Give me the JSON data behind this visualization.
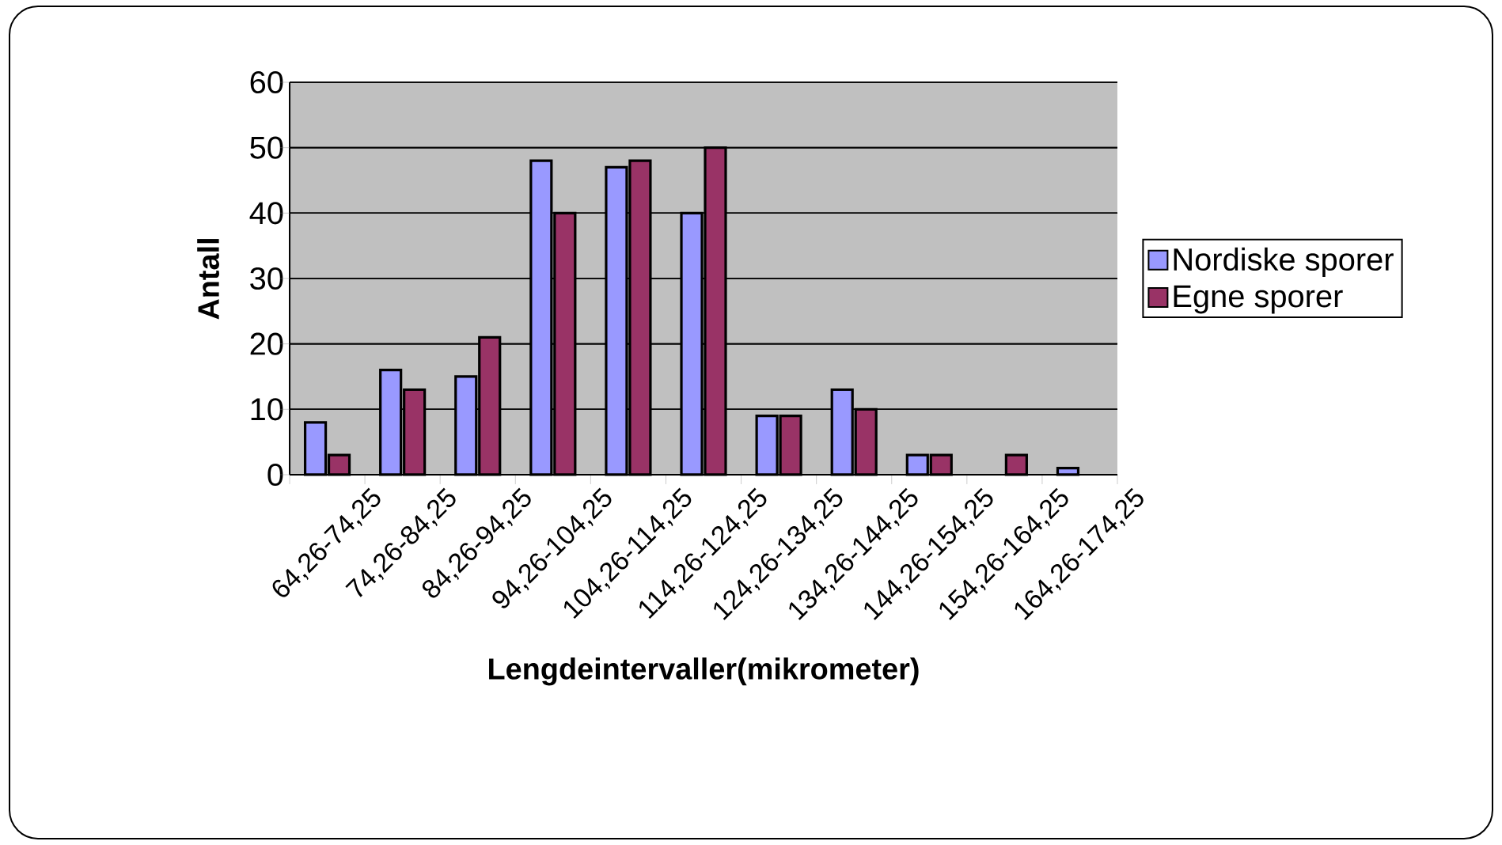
{
  "chart_data": {
    "type": "bar",
    "xlabel": "Lengdeintervaller(mikrometer)",
    "ylabel": "Antall",
    "categories": [
      "64,26-74,25",
      "74,26-84,25",
      "84,26-94,25",
      "94,26-104,25",
      "104,26-114,25",
      "114,26-124,25",
      "124,26-134,25",
      "134,26-144,25",
      "144,26-154,25",
      "154,26-164,25",
      "164,26-174,25"
    ],
    "series": [
      {
        "name": "Nordiske sporer",
        "color": "#9999ff",
        "values": [
          8,
          16,
          15,
          48,
          47,
          40,
          9,
          13,
          3,
          null,
          1
        ]
      },
      {
        "name": "Egne sporer",
        "color": "#993366",
        "values": [
          3,
          13,
          21,
          40,
          48,
          50,
          9,
          10,
          3,
          3,
          null
        ]
      }
    ],
    "ylim": [
      0,
      60
    ],
    "yticks": [
      0,
      10,
      20,
      30,
      40,
      50,
      60
    ],
    "grid": "y",
    "legend": "right"
  }
}
